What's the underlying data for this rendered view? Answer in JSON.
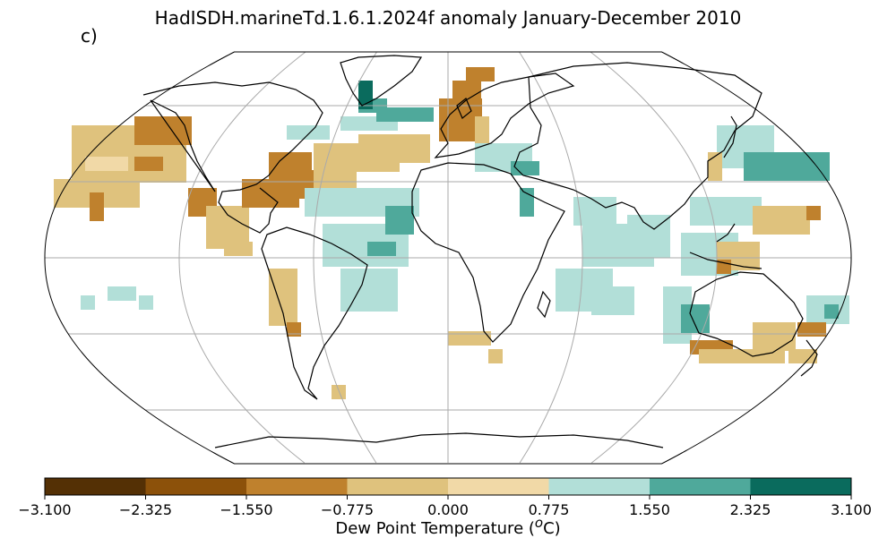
{
  "map": {
    "title": "HadISDH.marineTd.1.6.1.2024f anomaly January-December 2010",
    "panel_label": "c)",
    "projection": "robinson",
    "gridlines": true,
    "colorbar": {
      "label_prefix": "Dew Point Temperature (",
      "label_unit_letter": "o",
      "label_suffix": "C)",
      "ticks": [
        "−3.100",
        "−2.325",
        "−1.550",
        "−0.775",
        "0.000",
        "0.775",
        "1.550",
        "2.325",
        "3.100"
      ],
      "colors": [
        "#543005",
        "#8c510a",
        "#bf812d",
        "#dfc27d",
        "#f1d9a7",
        "#b2dfd8",
        "#4fa99b",
        "#0a6b5d",
        "#003c30"
      ],
      "bins": [
        [
          -3.1,
          -2.325
        ],
        [
          -2.325,
          -1.55
        ],
        [
          -1.55,
          -0.775
        ],
        [
          -0.775,
          0
        ],
        [
          0,
          0.775
        ],
        [
          0.775,
          1.55
        ],
        [
          1.55,
          2.325
        ],
        [
          2.325,
          3.1
        ]
      ]
    }
  }
}
